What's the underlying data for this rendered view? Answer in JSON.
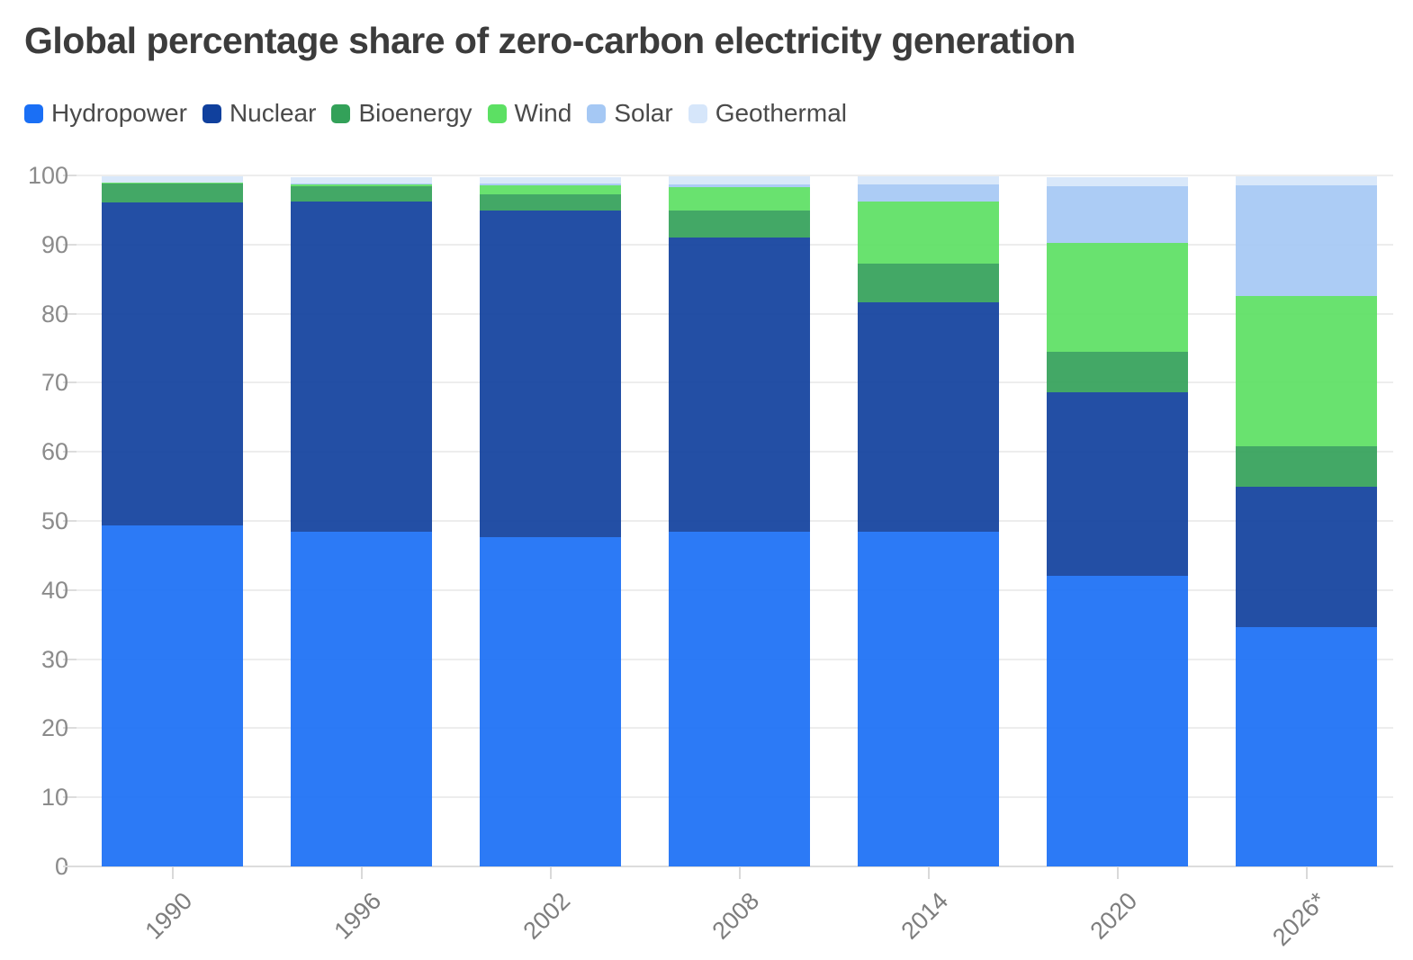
{
  "title": "Global percentage share of zero-carbon electricity generation",
  "chart_data": {
    "type": "bar",
    "stacked": true,
    "title": "Global percentage share of zero-carbon electricity generation",
    "xlabel": "",
    "ylabel": "",
    "ylim": [
      0,
      100
    ],
    "ytick_labels": [
      "0",
      "10",
      "20",
      "30",
      "40",
      "50",
      "60",
      "70",
      "80",
      "90",
      "100"
    ],
    "yticks": [
      0,
      10,
      20,
      30,
      40,
      50,
      60,
      70,
      80,
      90,
      100
    ],
    "grid": true,
    "legend_position": "top",
    "categories": [
      "1990",
      "1996",
      "2002",
      "2008",
      "2014",
      "2020",
      "2026*"
    ],
    "series": [
      {
        "name": "Hydropower",
        "color": "#1a6ff5",
        "values": [
          49.4,
          48.4,
          47.6,
          48.4,
          48.4,
          42.1,
          34.6
        ]
      },
      {
        "name": "Nuclear",
        "color": "#10409d",
        "values": [
          46.7,
          47.8,
          47.3,
          42.6,
          33.2,
          26.5,
          20.3
        ]
      },
      {
        "name": "Bioenergy",
        "color": "#33a159",
        "values": [
          2.7,
          2.2,
          2.4,
          3.9,
          5.6,
          5.9,
          5.9
        ]
      },
      {
        "name": "Wind",
        "color": "#5ce063",
        "values": [
          0.1,
          0.3,
          1.3,
          3.4,
          9.0,
          15.8,
          21.7
        ]
      },
      {
        "name": "Solar",
        "color": "#a5c8f4",
        "values": [
          0.0,
          0.1,
          0.2,
          0.4,
          2.5,
          8.1,
          16.1
        ]
      },
      {
        "name": "Geothermal",
        "color": "#d6e6fa",
        "values": [
          1.0,
          1.0,
          1.0,
          1.2,
          1.2,
          1.3,
          1.3
        ]
      }
    ]
  }
}
